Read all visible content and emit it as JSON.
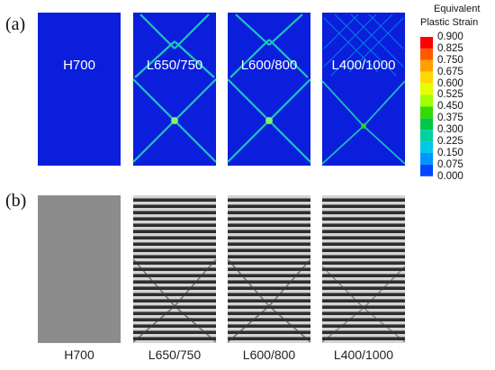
{
  "panels": [
    {
      "label": "(a)"
    },
    {
      "label": "(b)"
    }
  ],
  "samples": [
    {
      "id": "H700",
      "strain_band": false
    },
    {
      "id": "L650/750",
      "strain_band": true
    },
    {
      "id": "L600/800",
      "strain_band": true
    },
    {
      "id": "L400/1000",
      "strain_band": true
    }
  ],
  "legend": {
    "title_line1": "Equivalent",
    "title_line2": "Plastic Strain",
    "ticks": [
      "0.900",
      "0.825",
      "0.750",
      "0.675",
      "0.600",
      "0.525",
      "0.450",
      "0.375",
      "0.300",
      "0.225",
      "0.150",
      "0.075",
      "0.000"
    ],
    "colors": [
      "#ff0000",
      "#ff5a00",
      "#ffa000",
      "#ffd800",
      "#e6ff00",
      "#a0ff00",
      "#32dc00",
      "#00c846",
      "#00d2a0",
      "#00c8e6",
      "#0096ff",
      "#0046ff"
    ]
  },
  "colors": {
    "contour_bg": "#0a1edc",
    "band": "#1ee6b4",
    "stripe_dark": "#2e2e2e",
    "stripe_light": "#d4d4d4",
    "uniform_grey": "#8c8c8c"
  }
}
